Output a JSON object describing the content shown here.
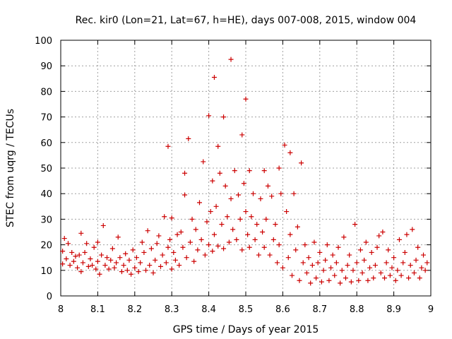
{
  "chart_data": {
    "type": "scatter",
    "title": "Rec. kir0 (Lon=21, Lat=67, h=HE), days 007-008, 2015, window 004",
    "xlabel": "GPS time / Days of year 2015",
    "ylabel": "STEC from uqrg / TECUs",
    "xlim": [
      8,
      9
    ],
    "ylim": [
      0,
      100
    ],
    "xticks": [
      8,
      8.1,
      8.2,
      8.3,
      8.4,
      8.5,
      8.6,
      8.7,
      8.8,
      8.9,
      9
    ],
    "xtick_labels": [
      "8",
      "8.1",
      "8.2",
      "8.3",
      "8.4",
      "8.5",
      "8.6",
      "8.7",
      "8.8",
      "8.9",
      "9"
    ],
    "yticks": [
      0,
      10,
      20,
      30,
      40,
      50,
      60,
      70,
      80,
      90,
      100
    ],
    "ytick_labels": [
      "0",
      "10",
      "20",
      "30",
      "40",
      "50",
      "60",
      "70",
      "80",
      "90",
      "100"
    ],
    "grid": true,
    "marker": "plus",
    "color": "#cc0000",
    "series": [
      {
        "points": [
          [
            8.005,
            12.5
          ],
          [
            8.005,
            17.5
          ],
          [
            8.01,
            22.5
          ],
          [
            8.015,
            14.5
          ],
          [
            8.02,
            20.5
          ],
          [
            8.025,
            12
          ],
          [
            8.03,
            17
          ],
          [
            8.035,
            13.5
          ],
          [
            8.04,
            15.5
          ],
          [
            8.045,
            11
          ],
          [
            8.05,
            16
          ],
          [
            8.055,
            24.5
          ],
          [
            8.055,
            9.5
          ],
          [
            8.06,
            13
          ],
          [
            8.065,
            17
          ],
          [
            8.07,
            20.5
          ],
          [
            8.075,
            11.5
          ],
          [
            8.08,
            14.5
          ],
          [
            8.085,
            12
          ],
          [
            8.09,
            19
          ],
          [
            8.095,
            10.5
          ],
          [
            8.1,
            13.5
          ],
          [
            8.1,
            21
          ],
          [
            8.105,
            8.5
          ],
          [
            8.11,
            16
          ],
          [
            8.115,
            27.5
          ],
          [
            8.12,
            12
          ],
          [
            8.125,
            15
          ],
          [
            8.13,
            10.5
          ],
          [
            8.135,
            14
          ],
          [
            8.14,
            18.5
          ],
          [
            8.145,
            11
          ],
          [
            8.15,
            13
          ],
          [
            8.155,
            23
          ],
          [
            8.16,
            15
          ],
          [
            8.165,
            9.5
          ],
          [
            8.17,
            12
          ],
          [
            8.175,
            16.5
          ],
          [
            8.18,
            10
          ],
          [
            8.185,
            14
          ],
          [
            8.19,
            8.5
          ],
          [
            8.195,
            18
          ],
          [
            8.2,
            11
          ],
          [
            8.205,
            15
          ],
          [
            8.21,
            9.5
          ],
          [
            8.215,
            13
          ],
          [
            8.22,
            21
          ],
          [
            8.225,
            17
          ],
          [
            8.23,
            10
          ],
          [
            8.235,
            25.5
          ],
          [
            8.24,
            12
          ],
          [
            8.245,
            18.5
          ],
          [
            8.25,
            9
          ],
          [
            8.255,
            14
          ],
          [
            8.26,
            20.5
          ],
          [
            8.265,
            23.5
          ],
          [
            8.27,
            11.5
          ],
          [
            8.275,
            16
          ],
          [
            8.28,
            31
          ],
          [
            8.285,
            13
          ],
          [
            8.29,
            58.5
          ],
          [
            8.29,
            19
          ],
          [
            8.295,
            22
          ],
          [
            8.3,
            30.5
          ],
          [
            8.3,
            10.5
          ],
          [
            8.305,
            17
          ],
          [
            8.31,
            14
          ],
          [
            8.315,
            24
          ],
          [
            8.32,
            12
          ],
          [
            8.325,
            25
          ],
          [
            8.33,
            19
          ],
          [
            8.335,
            48
          ],
          [
            8.335,
            39.5
          ],
          [
            8.34,
            15
          ],
          [
            8.345,
            61.5
          ],
          [
            8.35,
            21
          ],
          [
            8.355,
            30
          ],
          [
            8.36,
            13.5
          ],
          [
            8.365,
            26
          ],
          [
            8.37,
            18
          ],
          [
            8.375,
            36.5
          ],
          [
            8.38,
            22
          ],
          [
            8.385,
            52.5
          ],
          [
            8.39,
            16
          ],
          [
            8.395,
            29
          ],
          [
            8.4,
            70.5
          ],
          [
            8.4,
            20
          ],
          [
            8.405,
            33
          ],
          [
            8.41,
            45
          ],
          [
            8.41,
            17.5
          ],
          [
            8.415,
            85.5
          ],
          [
            8.415,
            24
          ],
          [
            8.42,
            35
          ],
          [
            8.425,
            58.5
          ],
          [
            8.425,
            19.5
          ],
          [
            8.43,
            48
          ],
          [
            8.435,
            28
          ],
          [
            8.44,
            70
          ],
          [
            8.44,
            18.5
          ],
          [
            8.445,
            43
          ],
          [
            8.45,
            31
          ],
          [
            8.455,
            21
          ],
          [
            8.46,
            92.5
          ],
          [
            8.46,
            38
          ],
          [
            8.465,
            26
          ],
          [
            8.47,
            49
          ],
          [
            8.475,
            22
          ],
          [
            8.48,
            39.5
          ],
          [
            8.485,
            30
          ],
          [
            8.49,
            63
          ],
          [
            8.49,
            18
          ],
          [
            8.495,
            44
          ],
          [
            8.5,
            77
          ],
          [
            8.5,
            33
          ],
          [
            8.505,
            24
          ],
          [
            8.51,
            49
          ],
          [
            8.51,
            19
          ],
          [
            8.515,
            31
          ],
          [
            8.52,
            40
          ],
          [
            8.525,
            22
          ],
          [
            8.53,
            28
          ],
          [
            8.535,
            16
          ],
          [
            8.54,
            38
          ],
          [
            8.545,
            25
          ],
          [
            8.55,
            49
          ],
          [
            8.55,
            19
          ],
          [
            8.555,
            30
          ],
          [
            8.56,
            43
          ],
          [
            8.565,
            16
          ],
          [
            8.57,
            39
          ],
          [
            8.575,
            22
          ],
          [
            8.58,
            28
          ],
          [
            8.585,
            13
          ],
          [
            8.59,
            50
          ],
          [
            8.59,
            20
          ],
          [
            8.595,
            40
          ],
          [
            8.6,
            11
          ],
          [
            8.605,
            59
          ],
          [
            8.61,
            33
          ],
          [
            8.615,
            15
          ],
          [
            8.62,
            56
          ],
          [
            8.62,
            24
          ],
          [
            8.625,
            8
          ],
          [
            8.63,
            40
          ],
          [
            8.635,
            18
          ],
          [
            8.64,
            27
          ],
          [
            8.645,
            6
          ],
          [
            8.65,
            52
          ],
          [
            8.655,
            13
          ],
          [
            8.66,
            20
          ],
          [
            8.665,
            9
          ],
          [
            8.67,
            15
          ],
          [
            8.675,
            5
          ],
          [
            8.68,
            12
          ],
          [
            8.685,
            21
          ],
          [
            8.69,
            7
          ],
          [
            8.695,
            13
          ],
          [
            8.7,
            17
          ],
          [
            8.705,
            5.5
          ],
          [
            8.71,
            10
          ],
          [
            8.715,
            14
          ],
          [
            8.72,
            20
          ],
          [
            8.725,
            6
          ],
          [
            8.73,
            11
          ],
          [
            8.735,
            16
          ],
          [
            8.74,
            8
          ],
          [
            8.745,
            13
          ],
          [
            8.75,
            19
          ],
          [
            8.755,
            5
          ],
          [
            8.76,
            10
          ],
          [
            8.765,
            23
          ],
          [
            8.77,
            7
          ],
          [
            8.775,
            12
          ],
          [
            8.78,
            16
          ],
          [
            8.785,
            5.5
          ],
          [
            8.79,
            10
          ],
          [
            8.795,
            28
          ],
          [
            8.8,
            13
          ],
          [
            8.805,
            6
          ],
          [
            8.81,
            18
          ],
          [
            8.815,
            9
          ],
          [
            8.82,
            14
          ],
          [
            8.825,
            21
          ],
          [
            8.83,
            6
          ],
          [
            8.835,
            11
          ],
          [
            8.84,
            17
          ],
          [
            8.845,
            7
          ],
          [
            8.85,
            12
          ],
          [
            8.855,
            19
          ],
          [
            8.86,
            23.5
          ],
          [
            8.865,
            9
          ],
          [
            8.87,
            25
          ],
          [
            8.875,
            7
          ],
          [
            8.88,
            13
          ],
          [
            8.885,
            18
          ],
          [
            8.89,
            8
          ],
          [
            8.895,
            11
          ],
          [
            8.9,
            15
          ],
          [
            8.905,
            6
          ],
          [
            8.91,
            10
          ],
          [
            8.915,
            22
          ],
          [
            8.92,
            8
          ],
          [
            8.925,
            13
          ],
          [
            8.93,
            17
          ],
          [
            8.935,
            24
          ],
          [
            8.94,
            7
          ],
          [
            8.945,
            12
          ],
          [
            8.95,
            26
          ],
          [
            8.955,
            9
          ],
          [
            8.96,
            14
          ],
          [
            8.965,
            19
          ],
          [
            8.97,
            7
          ],
          [
            8.975,
            11
          ],
          [
            8.98,
            16
          ],
          [
            8.985,
            10
          ],
          [
            8.99,
            13
          ]
        ]
      }
    ]
  }
}
